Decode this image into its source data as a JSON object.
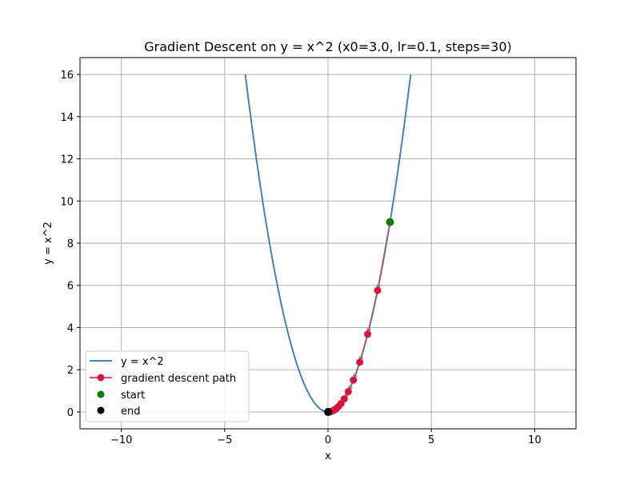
{
  "chart_data": {
    "type": "line",
    "title": "Gradient Descent on y = x^2 (x0=3.0, lr=0.1, steps=30)",
    "xlabel": "x",
    "ylabel": "y = x^2",
    "xlim": [
      -12,
      12
    ],
    "ylim": [
      -0.8,
      16.8
    ],
    "xticks": [
      -10,
      -5,
      0,
      5,
      10
    ],
    "xtick_labels": [
      "−10",
      "−5",
      "0",
      "5",
      "10"
    ],
    "yticks": [
      0,
      2,
      4,
      6,
      8,
      10,
      12,
      14,
      16
    ],
    "ytick_labels": [
      "0",
      "2",
      "4",
      "6",
      "8",
      "10",
      "12",
      "14",
      "16"
    ],
    "grid": true,
    "legend_position": "lower-left",
    "curve": {
      "name": "y = x^2",
      "color": "#4682b4",
      "x_range": [
        -4,
        4
      ]
    },
    "path": {
      "name": "gradient descent path",
      "color": "#dc143c",
      "arrow_color": "#808080",
      "x": [
        3.0,
        2.4,
        1.92,
        1.536,
        1.229,
        0.983,
        0.786,
        0.629,
        0.503,
        0.403,
        0.322,
        0.258,
        0.206,
        0.165,
        0.132,
        0.106,
        0.084,
        0.068,
        0.054,
        0.043,
        0.035,
        0.028,
        0.022,
        0.018,
        0.014,
        0.011,
        0.009,
        0.007,
        0.006,
        0.005,
        0.004
      ],
      "y": [
        9.0,
        5.76,
        3.686,
        2.359,
        1.51,
        0.966,
        0.618,
        0.396,
        0.253,
        0.162,
        0.104,
        0.066,
        0.042,
        0.027,
        0.017,
        0.011,
        0.007,
        0.005,
        0.003,
        0.002,
        0.001,
        0.001,
        0.0,
        0.0,
        0.0,
        0.0,
        0.0,
        0.0,
        0.0,
        0.0,
        0.0
      ]
    },
    "start": {
      "name": "start",
      "color": "#008000",
      "x": 3.0,
      "y": 9.0
    },
    "end": {
      "name": "end",
      "color": "#000000",
      "x": 0.004,
      "y": 0.0
    }
  }
}
